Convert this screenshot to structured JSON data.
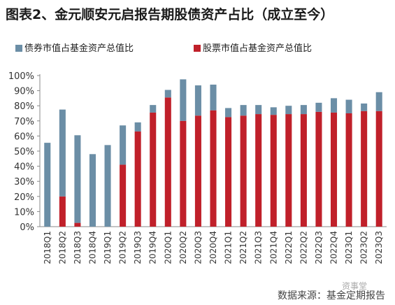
{
  "title": "图表2、金元顺安元启报告期股债资产占比（成立至今）",
  "source": "数据来源：基金定期报告",
  "watermark": "资事堂",
  "chart_data": {
    "type": "bar",
    "stacked": true,
    "legend_position": "top-left",
    "grid": false,
    "ylim": [
      0,
      100
    ],
    "yticks": [
      "0%",
      "10%",
      "20%",
      "30%",
      "40%",
      "50%",
      "60%",
      "70%",
      "80%",
      "90%",
      "100%"
    ],
    "categories": [
      "2018Q1",
      "2018Q2",
      "2018Q3",
      "2018Q4",
      "2019Q1",
      "2019Q2",
      "2019Q3",
      "2019Q4",
      "2020Q1",
      "2020Q2",
      "2020Q3",
      "2020Q4",
      "2021Q1",
      "2021Q2",
      "2021Q3",
      "2021Q4",
      "2022Q1",
      "2022Q2",
      "2022Q3",
      "2022Q4",
      "2023Q1",
      "2023Q2",
      "2023Q3"
    ],
    "series": [
      {
        "name": "股票市值占基金资产总值比",
        "color": "#c0202a",
        "values": [
          0,
          20,
          2.5,
          0,
          0,
          41,
          63,
          75.5,
          85.5,
          70,
          73.5,
          77,
          72.5,
          73.5,
          74.5,
          74,
          74.5,
          74.5,
          76,
          75.5,
          75,
          76.5,
          76.5
        ]
      },
      {
        "name": "债券市值占基金资产总值比",
        "color": "#6b8ea6",
        "values": [
          55.5,
          57.5,
          58,
          48,
          54,
          26,
          6,
          5,
          5,
          27.5,
          20,
          17,
          6,
          7,
          6,
          5,
          5.5,
          6,
          6,
          9.5,
          9,
          5,
          12.5
        ]
      }
    ]
  }
}
